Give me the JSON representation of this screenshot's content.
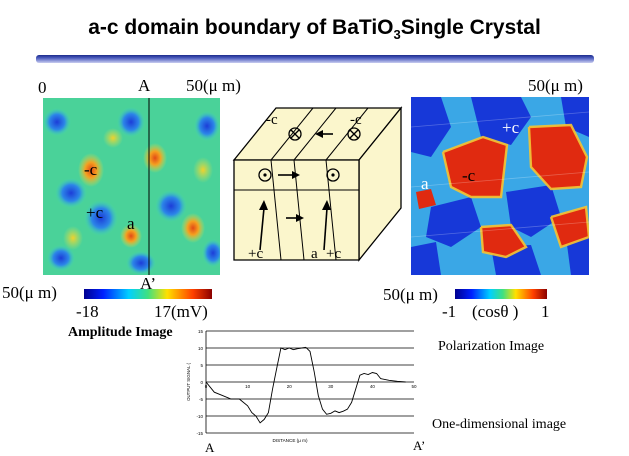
{
  "title": {
    "main": "a-c domain boundary of BaTiO",
    "sub": "3",
    "tail": "Single Crystal"
  },
  "amplitude_panel": {
    "origin": "0",
    "line_top": "A",
    "line_bottom": "A’",
    "scale_x": "50(μ m)",
    "scale_y": "50(μ m)",
    "labels": [
      "-c",
      "+c",
      "a"
    ],
    "colorbar_min": "-18",
    "colorbar_max": "17(mV)",
    "caption": "Amplitude Image"
  },
  "polarization_panel": {
    "scale_x": "50(μ m)",
    "scale_y": "50(μ m)",
    "labels": [
      "+c",
      "-c",
      "a"
    ],
    "colorbar_min": "-1",
    "colorbar_unit": "(cosθ )",
    "colorbar_max": "1",
    "caption": "Polarization Image"
  },
  "crystal_diagram": {
    "top_labels": [
      "-c",
      "-c"
    ],
    "bottom_labels": [
      "+c",
      "a",
      "+c"
    ]
  },
  "profile_plot": {
    "caption": "One-dimensional image",
    "start_label": "A",
    "end_label": "A’",
    "x_axis_label": "DISTANCE (μ m)",
    "y_axis_label": "OUTPUT SIGNAL (",
    "x_ticks": [
      "0",
      "10",
      "20",
      "30",
      "40",
      "50"
    ],
    "y_ticks": [
      "15",
      "10",
      "5",
      "0",
      "-5",
      "-10",
      "-15"
    ]
  },
  "chart_data": {
    "type": "line",
    "xlabel": "DISTANCE (μ m)",
    "ylabel": "OUTPUT SIGNAL (",
    "xlim": [
      0,
      50
    ],
    "ylim": [
      -15,
      15
    ],
    "grid": true,
    "x": [
      0,
      2,
      4,
      6,
      8,
      10,
      11,
      12,
      13,
      14,
      15,
      16,
      17,
      18,
      19,
      20,
      21,
      22,
      23,
      24,
      25,
      26,
      27,
      28,
      29,
      30,
      31,
      32,
      33,
      34,
      35,
      36,
      37,
      38,
      39,
      40,
      41,
      42,
      44,
      46,
      48
    ],
    "values": [
      0,
      -3,
      -4,
      -5,
      -5,
      -7,
      -9,
      -10,
      -12,
      -11,
      -9,
      -2,
      4,
      10,
      9.5,
      10,
      9.5,
      9.8,
      10,
      10.2,
      9,
      3,
      -4,
      -8,
      -9.5,
      -9.2,
      -8.5,
      -9,
      -8.6,
      -8,
      -6,
      -2,
      2,
      2.5,
      2.2,
      2.8,
      2.5,
      1,
      0.5,
      0.2,
      0
    ]
  }
}
